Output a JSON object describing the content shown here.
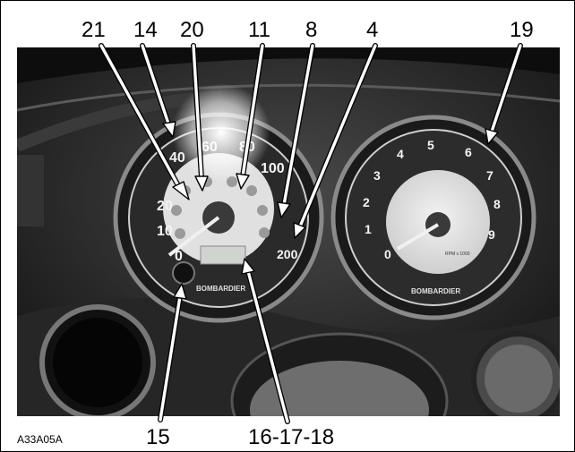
{
  "callouts": {
    "c21": "21",
    "c14": "14",
    "c20": "20",
    "c11": "11",
    "c8": "8",
    "c4": "4",
    "c19": "19",
    "c15": "15",
    "c16_17_18": "16-17-18"
  },
  "figure_code": "A33A05A",
  "speedometer": {
    "ticks": [
      "0",
      "10",
      "20",
      "40",
      "60",
      "80",
      "100",
      "200"
    ],
    "brand": "BOMBARDIER"
  },
  "tachometer": {
    "ticks": [
      "0",
      "1",
      "2",
      "3",
      "4",
      "5",
      "6",
      "7",
      "8",
      "9"
    ],
    "unit": "RPM x 1000",
    "brand": "BOMBARDIER"
  },
  "colors": {
    "frame": "#000000",
    "arrow_fill": "#ffffff",
    "dash": "#2b2b2b"
  }
}
